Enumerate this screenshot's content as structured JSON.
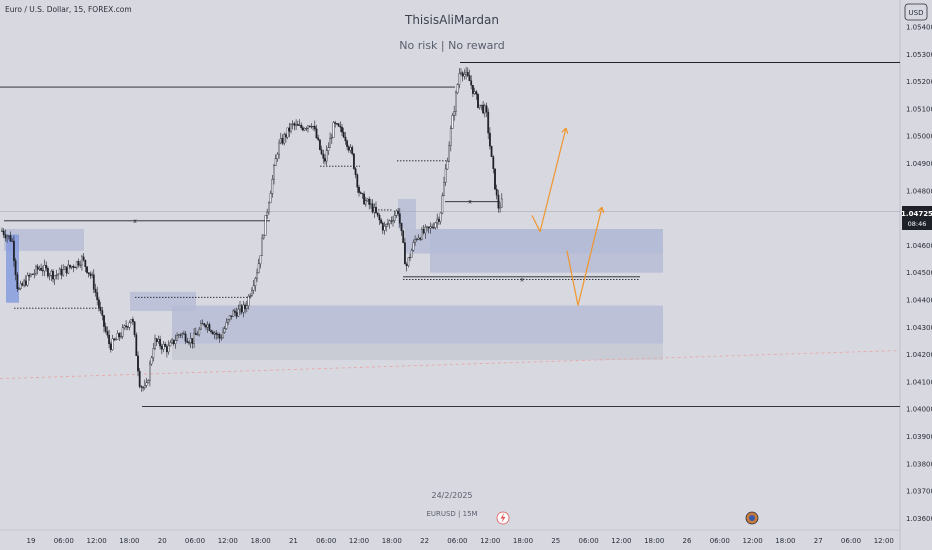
{
  "symbol_label": "Euro / U.S. Dollar, 15, FOREX.com",
  "watermark": {
    "title": "ThisisAliMardan",
    "subtitle": "No risk | No reward"
  },
  "footer": {
    "date": "24/2/2025",
    "pair": "EURUSD | 15M"
  },
  "currency_button": "USD",
  "price_tag": {
    "price": "1.04725",
    "countdown": "08:46"
  },
  "colors": {
    "background": "#d7d8e0",
    "zone": "#b3b9d6",
    "zone_gray": "#c7c9d2",
    "candle": "#1f2128",
    "projection": "#f0962a",
    "level": "#1f2128",
    "dashed_trend": "#e8a8a8"
  },
  "icons": [
    "lightning-icon",
    "economic-event-icon"
  ],
  "chart_data": {
    "type": "candlestick",
    "title": "",
    "y_axis": {
      "min": 1.0355,
      "max": 1.0545,
      "ticks": [
        "1.05400",
        "1.05300",
        "1.05200",
        "1.05100",
        "1.05000",
        "1.04900",
        "1.04800",
        "1.04700",
        "1.04600",
        "1.04500",
        "1.04400",
        "1.04300",
        "1.04200",
        "1.04100",
        "1.04000",
        "1.03900",
        "1.03800",
        "1.03700",
        "1.03600"
      ]
    },
    "x_axis": {
      "ticks": [
        "19",
        "06:00",
        "12:00",
        "18:00",
        "20",
        "06:00",
        "12:00",
        "18:00",
        "21",
        "06:00",
        "12:00",
        "18:00",
        "22",
        "06:00",
        "12:00",
        "18:00",
        "25",
        "06:00",
        "12:00",
        "18:00",
        "26",
        "06:00",
        "12:00",
        "18:00",
        "27",
        "06:00",
        "12:00"
      ]
    },
    "price_path": [
      [
        0,
        1.0466
      ],
      [
        12,
        1.0462
      ],
      [
        18,
        1.0443
      ],
      [
        28,
        1.0448
      ],
      [
        40,
        1.0452
      ],
      [
        55,
        1.0449
      ],
      [
        70,
        1.0452
      ],
      [
        82,
        1.0455
      ],
      [
        92,
        1.0448
      ],
      [
        102,
        1.0433
      ],
      [
        110,
        1.0423
      ],
      [
        122,
        1.0428
      ],
      [
        132,
        1.0434
      ],
      [
        140,
        1.0409
      ],
      [
        146,
        1.0407
      ],
      [
        154,
        1.0425
      ],
      [
        168,
        1.0422
      ],
      [
        180,
        1.0428
      ],
      [
        192,
        1.0425
      ],
      [
        205,
        1.0432
      ],
      [
        220,
        1.0426
      ],
      [
        232,
        1.0435
      ],
      [
        245,
        1.0437
      ],
      [
        258,
        1.0452
      ],
      [
        268,
        1.0475
      ],
      [
        278,
        1.0496
      ],
      [
        292,
        1.0504
      ],
      [
        300,
        1.0503
      ],
      [
        312,
        1.0505
      ],
      [
        324,
        1.049
      ],
      [
        334,
        1.0504
      ],
      [
        344,
        1.0501
      ],
      [
        352,
        1.0493
      ],
      [
        360,
        1.0478
      ],
      [
        372,
        1.0474
      ],
      [
        384,
        1.0466
      ],
      [
        398,
        1.0473
      ],
      [
        406,
        1.0452
      ],
      [
        416,
        1.0463
      ],
      [
        430,
        1.0466
      ],
      [
        440,
        1.0471
      ],
      [
        450,
        1.05
      ],
      [
        460,
        1.0525
      ],
      [
        470,
        1.052
      ],
      [
        478,
        1.0512
      ],
      [
        486,
        1.0509
      ],
      [
        492,
        1.049
      ],
      [
        498,
        1.0474
      ],
      [
        503,
        1.0476
      ]
    ],
    "horizontal_levels": [
      1.0527,
      1.0518,
      1.0401
    ],
    "dashed_levels": [
      1.0474,
      1.0448,
      1.0486,
      1.0489
    ],
    "zones": [
      {
        "from": 1.0466,
        "to": 1.0457,
        "tone": "dark"
      },
      {
        "from": 1.0466,
        "to": 1.045,
        "tone": "dark"
      },
      {
        "from": 1.0438,
        "to": 1.0424,
        "tone": "dark"
      },
      {
        "from": 1.0424,
        "to": 1.0418,
        "tone": "light"
      }
    ],
    "projection": [
      [
        1.0465,
        1.0503
      ],
      [
        1.0438,
        1.0474
      ]
    ],
    "last_price": 1.04725
  }
}
